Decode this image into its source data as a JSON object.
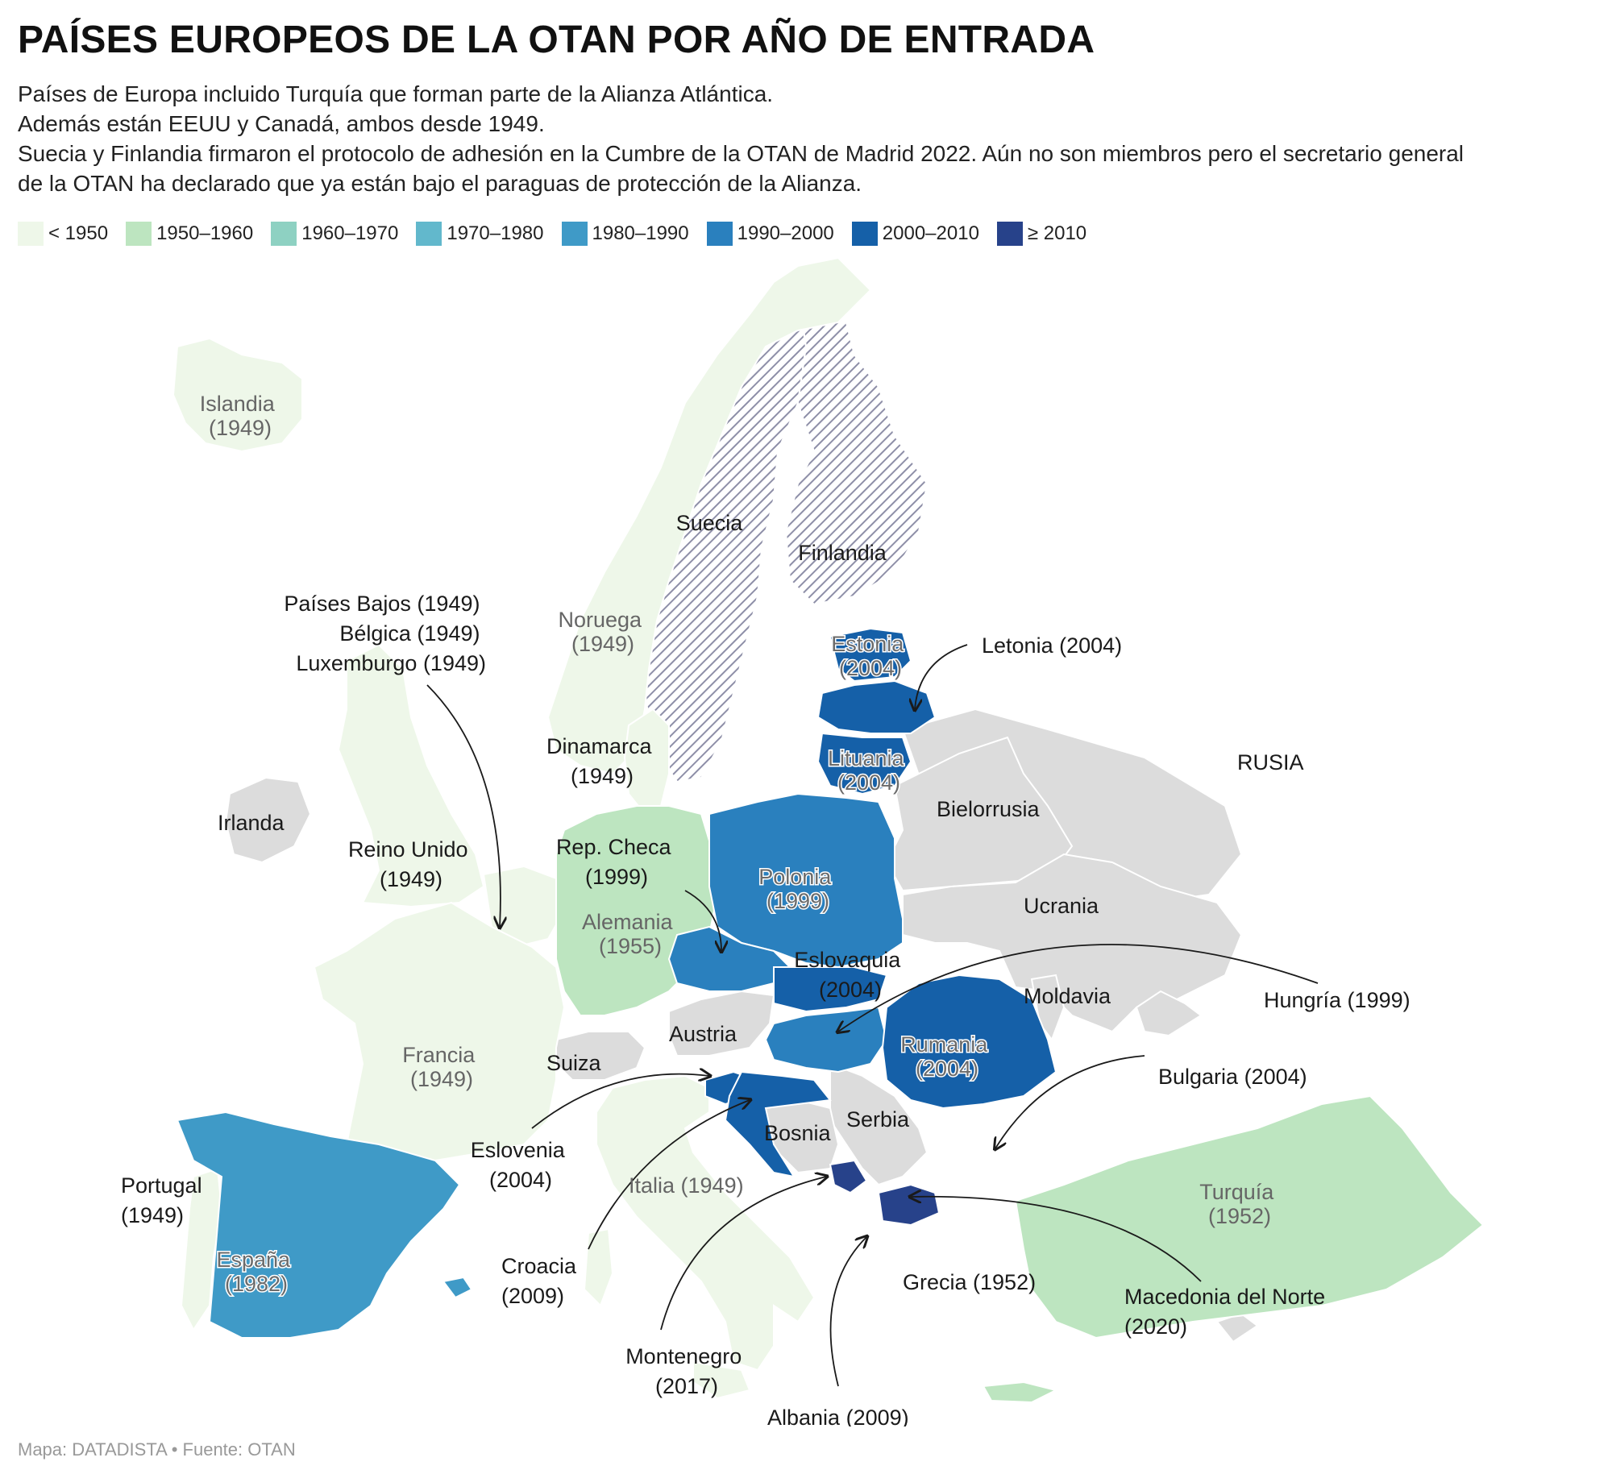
{
  "title": "PAÍSES EUROPEOS DE LA OTAN POR AÑO DE ENTRADA",
  "subtitle": [
    "Países de Europa incluido Turquía que forman parte de la Alianza Atlántica.",
    "Además están EEUU y Canadá, ambos desde 1949.",
    "Suecia y Finlandia firmaron el protocolo de adhesión en la Cumbre de la OTAN de Madrid 2022. Aún no son miembros pero el secretario general",
    "de la OTAN ha declarado que ya están bajo el paraguas de protección de la Alianza."
  ],
  "legend": [
    {
      "label": "< 1950",
      "color": "#eef7e9"
    },
    {
      "label": "1950–1960",
      "color": "#bde5c0"
    },
    {
      "label": "1960–1970",
      "color": "#8ed1c2"
    },
    {
      "label": "1970–1980",
      "color": "#62b8cc"
    },
    {
      "label": "1980–1990",
      "color": "#3f9ac7"
    },
    {
      "label": "1990–2000",
      "color": "#2a80be"
    },
    {
      "label": "2000–2010",
      "color": "#1560a8"
    },
    {
      "label": "≥ 2010",
      "color": "#27428a"
    }
  ],
  "colors": {
    "non_member": "#dcdcdc",
    "candidate_hatch": "#8e8fa8",
    "arrow": "#1a1a1a"
  },
  "labels": {
    "islandia": [
      "Islandia",
      "(1949)"
    ],
    "noruega": [
      "Noruega",
      "(1949)"
    ],
    "suecia": "Suecia",
    "finlandia": "Finlandia",
    "estonia": [
      "Estonia",
      "(2004)"
    ],
    "letonia": "Letonia (2004)",
    "lituania": [
      "Lituania",
      "(2004)"
    ],
    "rusia": "RUSIA",
    "bielorrusia": "Bielorrusia",
    "ucrania": "Ucrania",
    "moldavia": "Moldavia",
    "benelux": [
      "Países Bajos (1949)",
      "Bélgica (1949)",
      "Luxemburgo (1949)"
    ],
    "dinamarca": [
      "Dinamarca",
      "(1949)"
    ],
    "irlanda": "Irlanda",
    "reino_unido": [
      "Reino Unido",
      "(1949)"
    ],
    "rep_checa": [
      "Rep. Checa",
      "(1999)"
    ],
    "polonia": [
      "Polonia",
      "(1999)"
    ],
    "alemania": [
      "Alemania",
      "(1955)"
    ],
    "eslovaquia": [
      "Eslovaquia",
      "(2004)"
    ],
    "hungria": "Hungría (1999)",
    "austria": "Austria",
    "suiza": "Suiza",
    "francia": [
      "Francia",
      "(1949)"
    ],
    "rumania": [
      "Rumania",
      "(2004)"
    ],
    "bulgaria": "Bulgaria (2004)",
    "serbia": "Serbia",
    "bosnia": "Bosnia",
    "eslovenia": [
      "Eslovenia",
      "(2004)"
    ],
    "italia": "Italia (1949)",
    "portugal": [
      "Portugal",
      "(1949)"
    ],
    "espana": [
      "España",
      "(1982)"
    ],
    "turquia": [
      "Turquía",
      "(1952)"
    ],
    "croacia": [
      "Croacia",
      "(2009)"
    ],
    "grecia": "Grecia (1952)",
    "macedonia": [
      "Macedonia del Norte",
      "(2020)"
    ],
    "montenegro": [
      "Montenegro",
      "(2017)"
    ],
    "albania": "Albania (2009)"
  },
  "footer": "Mapa: DATADISTA • Fuente: OTAN"
}
